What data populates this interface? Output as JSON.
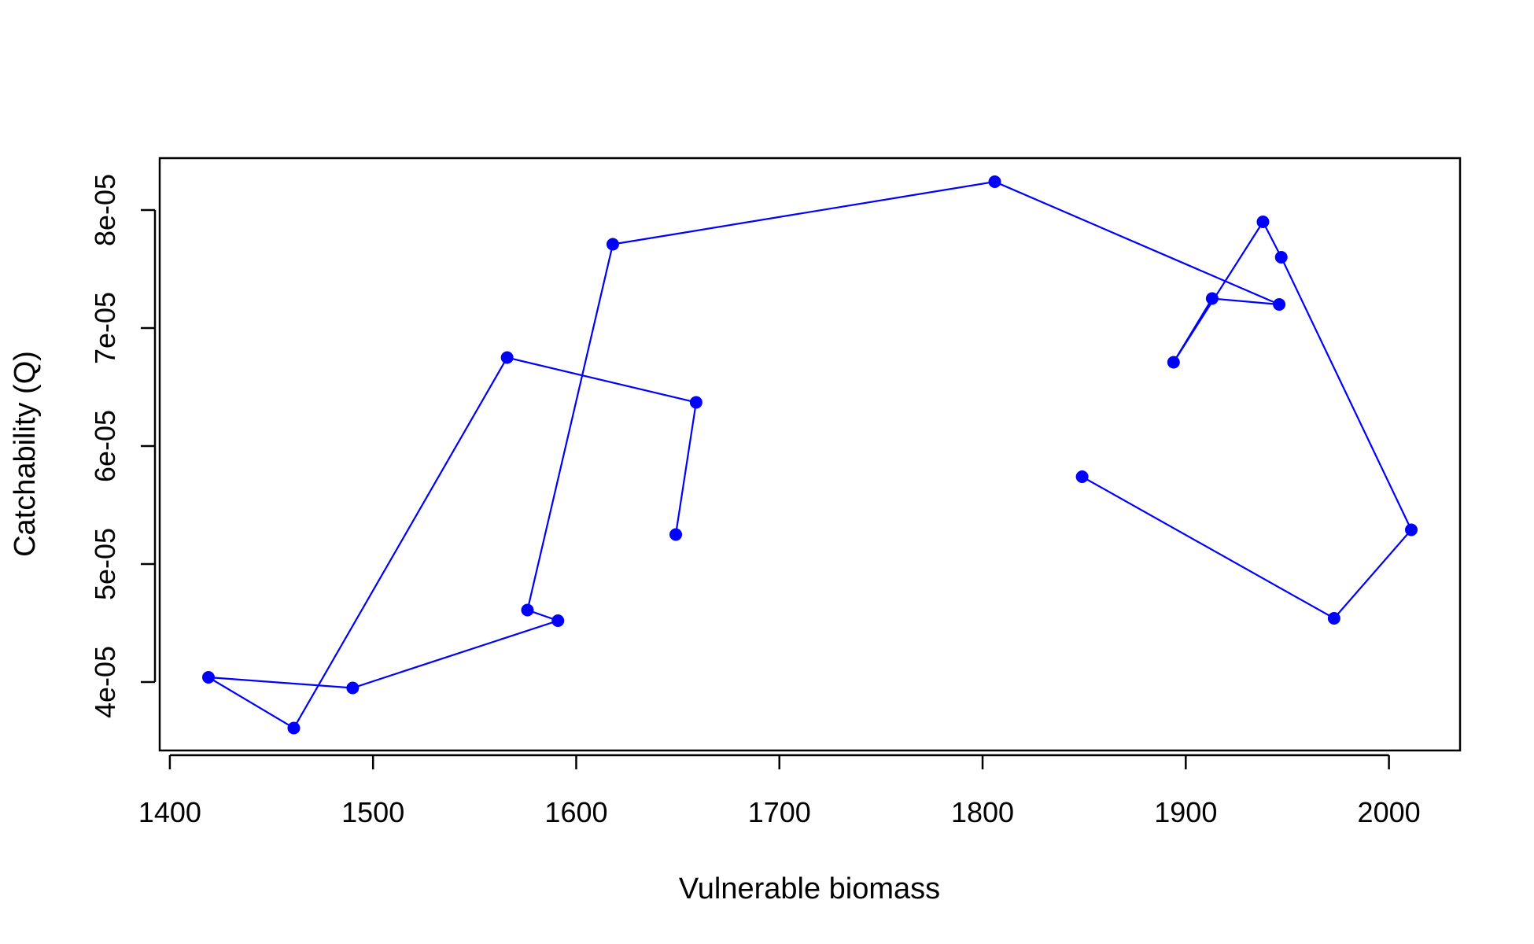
{
  "chart_data": {
    "type": "line",
    "title": "",
    "xlabel": "Vulnerable biomass",
    "ylabel": "Catchability (Q)",
    "xlim": [
      1395,
      2035
    ],
    "ylim": [
      3.42e-05,
      8.44e-05
    ],
    "xticks": [
      1400,
      1500,
      1600,
      1700,
      1800,
      1900,
      2000
    ],
    "xtick_labels": [
      "1400",
      "1500",
      "1600",
      "1700",
      "1800",
      "1900",
      "2000"
    ],
    "yticks": [
      4e-05,
      5e-05,
      6e-05,
      7e-05,
      8e-05
    ],
    "ytick_labels": [
      "4e-05",
      "5e-05",
      "6e-05",
      "7e-05",
      "8e-05"
    ],
    "grid": false,
    "legend": "none",
    "series_color": "#0000ff",
    "series": [
      {
        "x": [
          1649,
          1659,
          1566,
          1461,
          1419,
          1490,
          1591,
          1576,
          1618,
          1806,
          1946,
          1913,
          1894,
          1938,
          1947,
          2011,
          1973,
          1849
        ],
        "y": [
          5.25e-05,
          6.37e-05,
          6.75e-05,
          3.61e-05,
          4.04e-05,
          3.95e-05,
          4.52e-05,
          4.61e-05,
          7.71e-05,
          8.24e-05,
          7.2e-05,
          7.25e-05,
          6.71e-05,
          7.9e-05,
          7.6e-05,
          5.29e-05,
          4.54e-05,
          5.74e-05
        ]
      }
    ]
  }
}
